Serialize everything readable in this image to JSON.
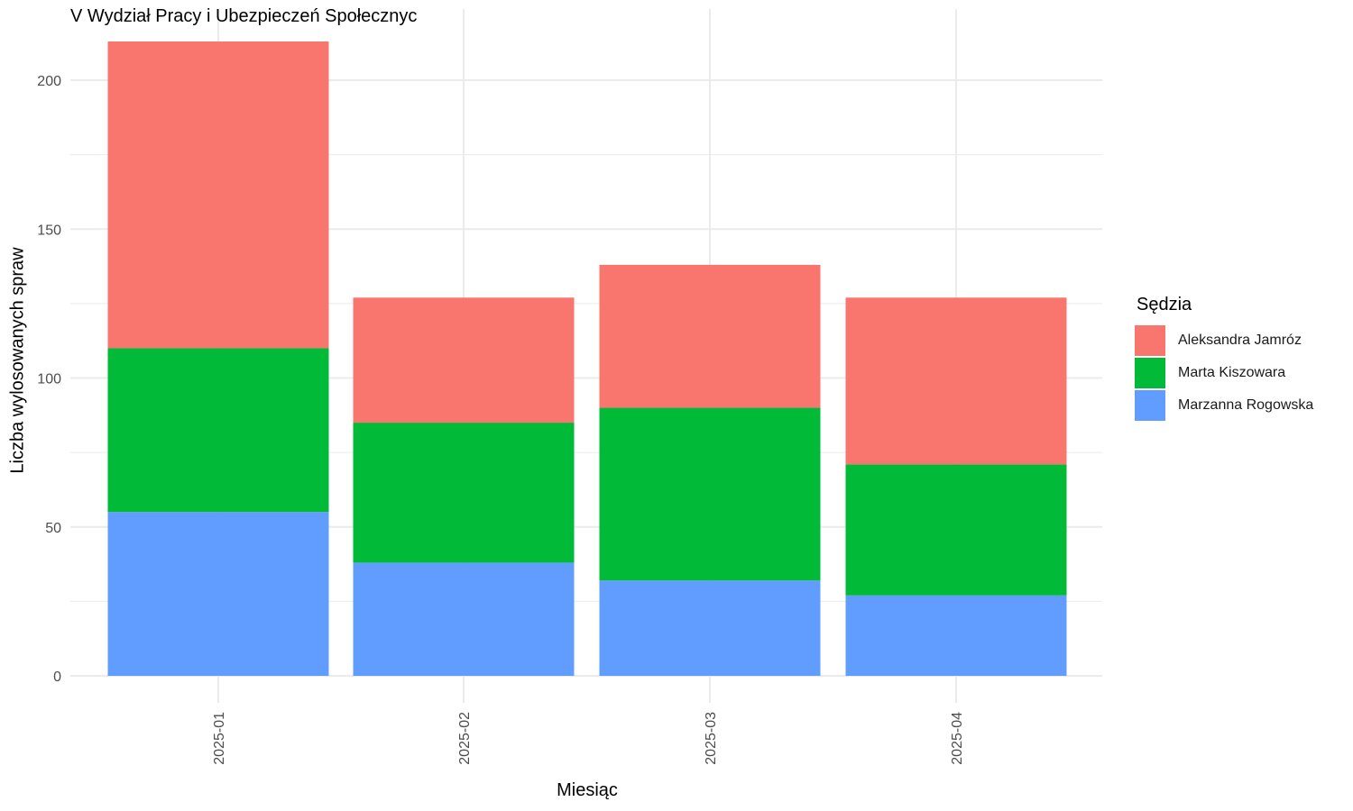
{
  "chart_data": {
    "type": "bar",
    "stacked": true,
    "title": "V Wydział Pracy i Ubezpieczeń Społecznyc",
    "xlabel": "Miesiąc",
    "ylabel": "Liczba wylosowanych spraw",
    "categories": [
      "2025-01",
      "2025-02",
      "2025-03",
      "2025-04"
    ],
    "ylim": [
      0,
      220
    ],
    "y_ticks": [
      0,
      50,
      100,
      150,
      200
    ],
    "grid": true,
    "legend": {
      "title": "Sędzia",
      "position": "right"
    },
    "series": [
      {
        "name": "Marzanna Rogowska",
        "color": "#619CFF",
        "values": [
          55,
          38,
          32,
          27
        ]
      },
      {
        "name": "Marta Kiszowara",
        "color": "#00BA38",
        "values": [
          55,
          47,
          58,
          44
        ]
      },
      {
        "name": "Aleksandra Jamróz",
        "color": "#F8766D",
        "values": [
          103,
          42,
          48,
          56
        ]
      }
    ],
    "legend_order": [
      "Aleksandra Jamróz",
      "Marta Kiszowara",
      "Marzanna Rogowska"
    ]
  }
}
